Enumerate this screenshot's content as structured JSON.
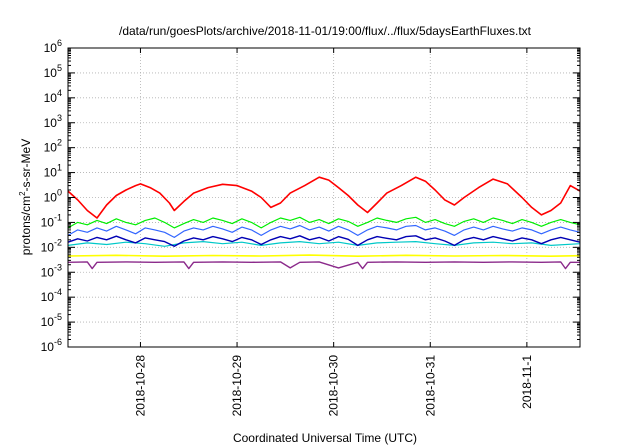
{
  "chart_data": {
    "type": "line",
    "title": "/data/run/goesPlots/archive/2018-11-01/19:00/flux/../flux/5daysEarthFluxes.txt",
    "xlabel": "Coordinated Universal Time (UTC)",
    "ylabel": {
      "base": "protons/cm",
      "sup": "2",
      "rest": "-s-sr-MeV"
    },
    "y_scale": "log",
    "ylim_exp": [
      -6,
      6
    ],
    "xlim": [
      0,
      5.3
    ],
    "x_ticks": [
      {
        "x": 0.75,
        "label": "2018-10-28"
      },
      {
        "x": 1.75,
        "label": "2018-10-29"
      },
      {
        "x": 2.75,
        "label": "2018-10-30"
      },
      {
        "x": 3.75,
        "label": "2018-10-31"
      },
      {
        "x": 4.75,
        "label": "2018-11-1"
      }
    ],
    "y_ticks": [
      -6,
      -5,
      -4,
      -3,
      -2,
      -1,
      0,
      1,
      2,
      3,
      4,
      5,
      6
    ],
    "y_tick_base": "10",
    "grid": true,
    "series": [
      {
        "color": "#ff0000",
        "width": 1.6,
        "x": [
          0,
          0.1,
          0.2,
          0.3,
          0.4,
          0.5,
          0.6,
          0.7,
          0.75,
          0.85,
          0.95,
          1.05,
          1.1,
          1.2,
          1.3,
          1.45,
          1.6,
          1.75,
          1.9,
          2.0,
          2.1,
          2.2,
          2.3,
          2.45,
          2.6,
          2.7,
          2.8,
          2.9,
          3.0,
          3.1,
          3.2,
          3.3,
          3.45,
          3.6,
          3.7,
          3.8,
          3.9,
          4.0,
          4.1,
          4.25,
          4.4,
          4.55,
          4.7,
          4.8,
          4.9,
          5.0,
          5.1,
          5.2,
          5.3
        ],
        "y": [
          1.8,
          0.8,
          0.3,
          0.15,
          0.5,
          1.2,
          2.0,
          3.0,
          3.5,
          2.5,
          1.5,
          0.6,
          0.3,
          0.7,
          1.5,
          2.5,
          3.4,
          3.0,
          1.8,
          1.0,
          0.4,
          0.6,
          1.5,
          3.0,
          6.5,
          5.0,
          2.5,
          1.2,
          0.5,
          0.25,
          0.6,
          1.5,
          3.0,
          6.5,
          4.5,
          2.0,
          0.8,
          0.5,
          1.0,
          2.5,
          5.5,
          3.5,
          1.0,
          0.4,
          0.2,
          0.3,
          0.6,
          3.0,
          1.8
        ]
      },
      {
        "color": "#00ee00",
        "width": 1.2,
        "x": [
          0,
          0.1,
          0.2,
          0.3,
          0.4,
          0.5,
          0.6,
          0.7,
          0.8,
          0.9,
          1.0,
          1.1,
          1.2,
          1.3,
          1.4,
          1.5,
          1.6,
          1.7,
          1.8,
          1.9,
          2.0,
          2.1,
          2.2,
          2.3,
          2.4,
          2.5,
          2.6,
          2.7,
          2.8,
          2.9,
          3.0,
          3.1,
          3.2,
          3.3,
          3.4,
          3.5,
          3.6,
          3.7,
          3.8,
          3.9,
          4.0,
          4.1,
          4.2,
          4.3,
          4.4,
          4.5,
          4.6,
          4.7,
          4.8,
          4.9,
          5.0,
          5.1,
          5.2,
          5.3
        ],
        "y": [
          0.06,
          0.1,
          0.08,
          0.12,
          0.09,
          0.14,
          0.1,
          0.08,
          0.12,
          0.15,
          0.1,
          0.06,
          0.09,
          0.13,
          0.1,
          0.15,
          0.12,
          0.09,
          0.14,
          0.1,
          0.06,
          0.1,
          0.15,
          0.12,
          0.16,
          0.1,
          0.13,
          0.09,
          0.14,
          0.11,
          0.07,
          0.1,
          0.15,
          0.12,
          0.1,
          0.14,
          0.16,
          0.1,
          0.13,
          0.09,
          0.07,
          0.11,
          0.14,
          0.1,
          0.15,
          0.12,
          0.09,
          0.13,
          0.1,
          0.07,
          0.1,
          0.13,
          0.1,
          0.08
        ]
      },
      {
        "color": "#3366ff",
        "width": 1.2,
        "x": [
          0,
          0.1,
          0.2,
          0.3,
          0.4,
          0.5,
          0.6,
          0.7,
          0.8,
          0.9,
          1.0,
          1.1,
          1.2,
          1.3,
          1.4,
          1.5,
          1.6,
          1.7,
          1.8,
          1.9,
          2.0,
          2.1,
          2.2,
          2.3,
          2.4,
          2.5,
          2.6,
          2.7,
          2.8,
          2.9,
          3.0,
          3.1,
          3.2,
          3.3,
          3.4,
          3.5,
          3.6,
          3.7,
          3.8,
          3.9,
          4.0,
          4.1,
          4.2,
          4.3,
          4.4,
          4.5,
          4.6,
          4.7,
          4.8,
          4.9,
          5.0,
          5.1,
          5.2,
          5.3
        ],
        "y": [
          0.03,
          0.05,
          0.04,
          0.06,
          0.045,
          0.07,
          0.05,
          0.035,
          0.06,
          0.05,
          0.04,
          0.025,
          0.045,
          0.06,
          0.05,
          0.07,
          0.055,
          0.04,
          0.065,
          0.05,
          0.03,
          0.05,
          0.07,
          0.055,
          0.075,
          0.05,
          0.065,
          0.045,
          0.07,
          0.05,
          0.03,
          0.05,
          0.07,
          0.06,
          0.05,
          0.07,
          0.075,
          0.05,
          0.06,
          0.045,
          0.03,
          0.05,
          0.065,
          0.05,
          0.07,
          0.055,
          0.045,
          0.06,
          0.05,
          0.035,
          0.05,
          0.065,
          0.05,
          0.04
        ]
      },
      {
        "color": "#00c8c8",
        "width": 1.2,
        "x": [
          0,
          0.2,
          0.4,
          0.6,
          0.8,
          1.0,
          1.2,
          1.4,
          1.6,
          1.8,
          2.0,
          2.2,
          2.4,
          2.6,
          2.8,
          3.0,
          3.2,
          3.4,
          3.6,
          3.8,
          4.0,
          4.2,
          4.4,
          4.6,
          4.8,
          5.0,
          5.3
        ],
        "y": [
          0.012,
          0.015,
          0.013,
          0.016,
          0.014,
          0.011,
          0.015,
          0.017,
          0.014,
          0.016,
          0.012,
          0.015,
          0.017,
          0.014,
          0.016,
          0.012,
          0.015,
          0.016,
          0.017,
          0.014,
          0.012,
          0.015,
          0.016,
          0.014,
          0.015,
          0.012,
          0.014
        ]
      },
      {
        "color": "#0000b4",
        "width": 1.4,
        "x": [
          0,
          0.1,
          0.2,
          0.3,
          0.4,
          0.5,
          0.6,
          0.7,
          0.8,
          0.9,
          1.0,
          1.1,
          1.2,
          1.3,
          1.4,
          1.5,
          1.6,
          1.7,
          1.8,
          1.9,
          2.0,
          2.1,
          2.2,
          2.3,
          2.4,
          2.5,
          2.6,
          2.7,
          2.8,
          2.9,
          3.0,
          3.1,
          3.2,
          3.3,
          3.4,
          3.5,
          3.6,
          3.7,
          3.8,
          3.9,
          4.0,
          4.1,
          4.2,
          4.3,
          4.4,
          4.5,
          4.6,
          4.7,
          4.8,
          4.9,
          5.0,
          5.1,
          5.2,
          5.3
        ],
        "y": [
          0.016,
          0.022,
          0.018,
          0.025,
          0.02,
          0.028,
          0.02,
          0.015,
          0.024,
          0.02,
          0.017,
          0.011,
          0.018,
          0.024,
          0.02,
          0.027,
          0.022,
          0.017,
          0.025,
          0.02,
          0.013,
          0.02,
          0.027,
          0.022,
          0.029,
          0.02,
          0.025,
          0.018,
          0.027,
          0.021,
          0.012,
          0.02,
          0.027,
          0.023,
          0.02,
          0.027,
          0.029,
          0.02,
          0.024,
          0.018,
          0.012,
          0.02,
          0.025,
          0.02,
          0.027,
          0.022,
          0.018,
          0.024,
          0.02,
          0.014,
          0.02,
          0.025,
          0.02,
          0.016
        ]
      },
      {
        "color": "#ffff00",
        "width": 1.6,
        "x": [
          0,
          0.5,
          1.0,
          1.5,
          2.0,
          2.5,
          3.0,
          3.5,
          4.0,
          4.5,
          5.0,
          5.3
        ],
        "y": [
          0.0045,
          0.0048,
          0.0044,
          0.0047,
          0.0045,
          0.0049,
          0.0044,
          0.0048,
          0.0045,
          0.0047,
          0.0044,
          0.0046
        ]
      },
      {
        "color": "#8b2a8b",
        "width": 1.4,
        "x": [
          0,
          0.2,
          0.25,
          0.3,
          0.6,
          0.9,
          1.2,
          1.25,
          1.3,
          1.6,
          1.9,
          2.2,
          2.3,
          2.4,
          2.6,
          2.8,
          3.0,
          3.05,
          3.1,
          3.4,
          3.7,
          4.0,
          4.3,
          4.6,
          4.9,
          5.1,
          5.15,
          5.2,
          5.3
        ],
        "y": [
          0.0025,
          0.0026,
          0.0014,
          0.0025,
          0.0026,
          0.0025,
          0.0026,
          0.0014,
          0.0025,
          0.0026,
          0.0025,
          0.0026,
          0.0015,
          0.0025,
          0.0026,
          0.0015,
          0.0025,
          0.0014,
          0.0025,
          0.0026,
          0.0025,
          0.0026,
          0.0025,
          0.0026,
          0.0025,
          0.0026,
          0.0014,
          0.0025,
          0.0025
        ]
      }
    ]
  }
}
